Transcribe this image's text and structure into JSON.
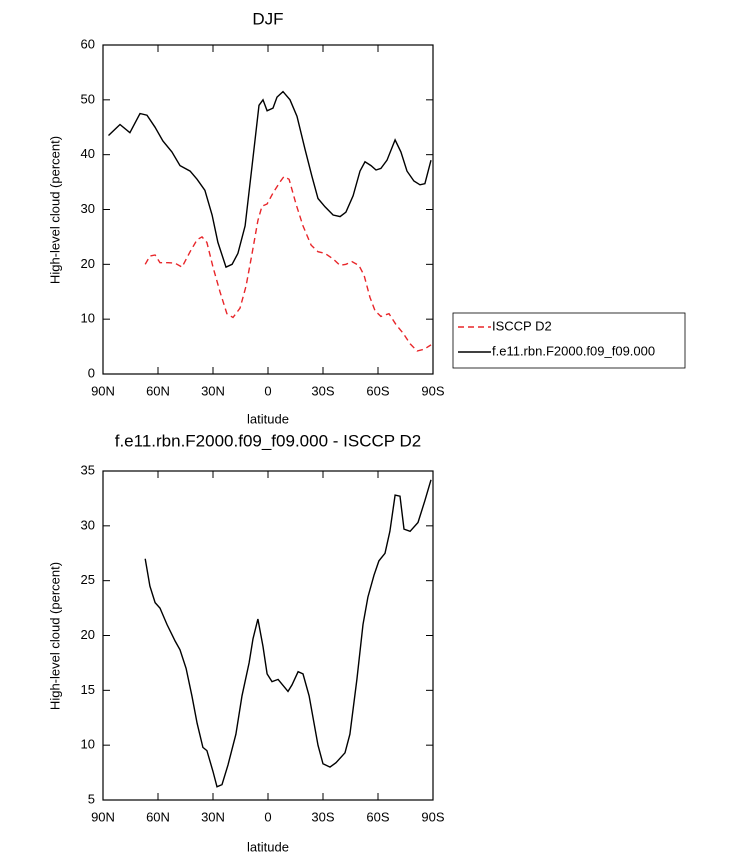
{
  "chart_data": [
    {
      "type": "line",
      "title": "DJF",
      "xlabel": "latitude",
      "ylabel": "High-level cloud (percent)",
      "xlim": [
        90,
        -90
      ],
      "xticks": [
        {
          "value": 90,
          "label": "90N"
        },
        {
          "value": 60,
          "label": "60N"
        },
        {
          "value": 30,
          "label": "30N"
        },
        0,
        {
          "value": -30,
          "label": "30S"
        },
        {
          "value": -60,
          "label": "60S"
        },
        {
          "value": -90,
          "label": "90S"
        }
      ],
      "ylim": [
        0,
        60
      ],
      "yticks": [
        0,
        10,
        20,
        30,
        40,
        50,
        60
      ],
      "legend": "right",
      "series": [
        {
          "name": "ISCCP D2",
          "color": "#e8262a",
          "dash": true,
          "x": [
            67,
            64.4,
            61.6,
            58.9,
            54.5,
            50.7,
            46.9,
            42.5,
            38.7,
            36,
            33.3,
            30,
            26.2,
            22.4,
            19.1,
            15.3,
            12,
            8.7,
            5.5,
            3.3,
            0.5,
            -2.7,
            -6.5,
            -8.7,
            -11.5,
            -15.3,
            -19.1,
            -23.5,
            -27.3,
            -31.1,
            -35.5,
            -39.3,
            -42.5,
            -45.8,
            -49.6,
            -52.4,
            -55.6,
            -58.4,
            -61.6,
            -66,
            -69.8,
            -73.6,
            -77.5,
            -81.3,
            -85.1,
            -88.9
          ],
          "values": [
            20,
            21.5,
            21.7,
            20.3,
            20.3,
            20.2,
            19.5,
            22.3,
            24.5,
            25,
            24,
            19.5,
            15,
            11,
            10.3,
            12,
            16,
            22,
            28,
            30.6,
            31,
            33,
            35,
            36,
            35.5,
            31,
            27,
            23.5,
            22.3,
            22,
            21,
            19.8,
            20,
            20.5,
            19.8,
            18,
            14,
            11.5,
            10.5,
            11,
            9,
            7.5,
            5.5,
            4.2,
            4.5,
            5.3
          ]
        },
        {
          "name": "f.e11.rbn.F2000.f09_f09.000",
          "color": "#000000",
          "dash": false,
          "x": [
            87,
            80.7,
            75.3,
            69.8,
            66,
            61.6,
            57.3,
            52.4,
            48,
            42.5,
            38.7,
            34.4,
            30.5,
            27.3,
            22.9,
            19.6,
            16.4,
            12.5,
            8.7,
            4.9,
            2.7,
            0.5,
            -2.7,
            -4.9,
            -8.2,
            -12,
            -15.8,
            -20.2,
            -24,
            -27.3,
            -31.1,
            -35.5,
            -39.3,
            -42.5,
            -46.4,
            -50.2,
            -52.9,
            -56.2,
            -58.9,
            -61.6,
            -64.9,
            -69.3,
            -72.5,
            -75.8,
            -79.6,
            -82.9,
            -85.6,
            -88.9
          ],
          "values": [
            43.5,
            45.5,
            44,
            47.5,
            47.2,
            45,
            42.5,
            40.5,
            38,
            37,
            35.5,
            33.5,
            29,
            24,
            19.5,
            20,
            22,
            27,
            38,
            49,
            50,
            48,
            48.5,
            50.5,
            51.5,
            50,
            47,
            41,
            36,
            32,
            30.5,
            29,
            28.7,
            29.5,
            32.5,
            37,
            38.7,
            38,
            37.2,
            37.5,
            39,
            42.7,
            40.5,
            37,
            35.2,
            34.5,
            34.7,
            39
          ]
        }
      ]
    },
    {
      "type": "line",
      "title": "f.e11.rbn.F2000.f09_f09.000 - ISCCP D2",
      "xlabel": "latitude",
      "ylabel": "High-level cloud (percent)",
      "xlim": [
        90,
        -90
      ],
      "xticks": [
        {
          "value": 90,
          "label": "90N"
        },
        {
          "value": 60,
          "label": "60N"
        },
        {
          "value": 30,
          "label": "30N"
        },
        0,
        {
          "value": -30,
          "label": "30S"
        },
        {
          "value": -60,
          "label": "60S"
        },
        {
          "value": -90,
          "label": "90S"
        }
      ],
      "ylim": [
        5,
        35
      ],
      "yticks": [
        5,
        10,
        15,
        20,
        25,
        30,
        35
      ],
      "series": [
        {
          "color": "#000000",
          "dash": false,
          "x": [
            67,
            64.4,
            61.6,
            58.9,
            55.1,
            50.7,
            48,
            44.7,
            41.5,
            38.7,
            35.5,
            33.3,
            30,
            27.8,
            25.1,
            21.8,
            17.5,
            14.2,
            10.3,
            8.2,
            5.5,
            2.7,
            0.5,
            -2.2,
            -5.5,
            -10.9,
            -13.1,
            -16.4,
            -19.1,
            -22.4,
            -27.3,
            -30,
            -33.8,
            -37.1,
            -42,
            -44.7,
            -48.5,
            -51.8,
            -54.5,
            -57.8,
            -60.5,
            -63.8,
            -66.5,
            -69.3,
            -72,
            -74.2,
            -77.5,
            -81.8,
            -85.6,
            -88.9
          ],
          "values": [
            27,
            24.5,
            23,
            22.5,
            21,
            19.5,
            18.7,
            17,
            14.5,
            12,
            9.8,
            9.5,
            7.6,
            6.2,
            6.4,
            8.2,
            11,
            14.5,
            17.5,
            19.7,
            21.5,
            19,
            16.5,
            15.8,
            16,
            14.9,
            15.5,
            16.7,
            16.5,
            14.5,
            10,
            8.3,
            8,
            8.4,
            9.3,
            11,
            16,
            21,
            23.5,
            25.5,
            26.8,
            27.5,
            29.5,
            32.8,
            32.7,
            29.7,
            29.5,
            30.3,
            32.3,
            34.2
          ]
        }
      ]
    }
  ]
}
